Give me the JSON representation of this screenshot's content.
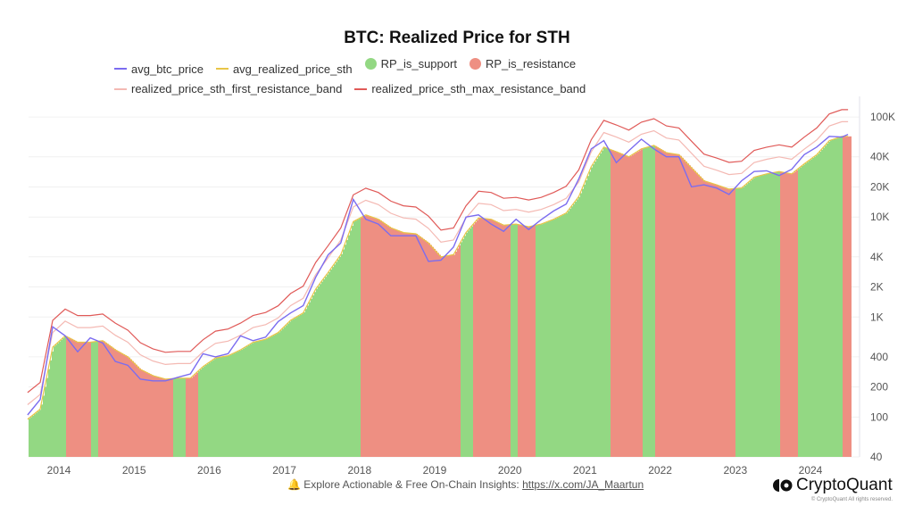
{
  "chart_data": {
    "type": "line",
    "title": "BTC: Realized Price for STH",
    "legend": [
      {
        "name": "avg_btc_price",
        "color": "#7b6cf0",
        "kind": "line"
      },
      {
        "name": "avg_realized_price_sth",
        "color": "#e8c547",
        "kind": "line"
      },
      {
        "name": "RP_is_support",
        "color": "#93d883",
        "kind": "dot"
      },
      {
        "name": "RP_is_resistance",
        "color": "#ee8f82",
        "kind": "dot"
      },
      {
        "name": "realized_price_sth_first_resistance_band",
        "color": "#f4b9b3",
        "kind": "line"
      },
      {
        "name": "realized_price_sth_max_resistance_band",
        "color": "#e05a58",
        "kind": "line"
      }
    ],
    "legend_position": "top",
    "y_scale": "log",
    "ylim": [
      40,
      150000
    ],
    "y_ticks": [
      {
        "v": 100000,
        "label": "100K"
      },
      {
        "v": 40000,
        "label": "40K"
      },
      {
        "v": 20000,
        "label": "20K"
      },
      {
        "v": 10000,
        "label": "10K"
      },
      {
        "v": 4000,
        "label": "4K"
      },
      {
        "v": 2000,
        "label": "2K"
      },
      {
        "v": 1000,
        "label": "1K"
      },
      {
        "v": 400,
        "label": "400"
      },
      {
        "v": 200,
        "label": "200"
      },
      {
        "v": 100,
        "label": "100"
      },
      {
        "v": 40,
        "label": "40"
      }
    ],
    "x_ticks": [
      "2014",
      "2015",
      "2016",
      "2017",
      "2018",
      "2019",
      "2020",
      "2021",
      "2022",
      "2023",
      "2024"
    ],
    "grid": true,
    "x": [
      "2013-08",
      "2013-10",
      "2013-12",
      "2014-02",
      "2014-04",
      "2014-06",
      "2014-08",
      "2014-10",
      "2014-12",
      "2015-02",
      "2015-04",
      "2015-06",
      "2015-08",
      "2015-10",
      "2015-12",
      "2016-02",
      "2016-04",
      "2016-06",
      "2016-08",
      "2016-10",
      "2016-12",
      "2017-02",
      "2017-04",
      "2017-06",
      "2017-08",
      "2017-10",
      "2017-12",
      "2018-02",
      "2018-04",
      "2018-06",
      "2018-08",
      "2018-10",
      "2018-12",
      "2019-02",
      "2019-04",
      "2019-06",
      "2019-08",
      "2019-10",
      "2019-12",
      "2020-02",
      "2020-04",
      "2020-06",
      "2020-08",
      "2020-10",
      "2020-12",
      "2021-02",
      "2021-04",
      "2021-06",
      "2021-08",
      "2021-10",
      "2021-12",
      "2022-02",
      "2022-04",
      "2022-06",
      "2022-08",
      "2022-10",
      "2022-12",
      "2023-02",
      "2023-04",
      "2023-06",
      "2023-08",
      "2023-10",
      "2023-12",
      "2024-02",
      "2024-04",
      "2024-06",
      "2024-07"
    ],
    "series": [
      {
        "name": "avg_btc_price",
        "values": [
          105,
          150,
          800,
          650,
          450,
          620,
          550,
          360,
          330,
          240,
          230,
          230,
          250,
          270,
          430,
          400,
          430,
          650,
          580,
          630,
          900,
          1100,
          1300,
          2500,
          4200,
          5500,
          15000,
          9500,
          8500,
          6500,
          6500,
          6500,
          3600,
          3700,
          5000,
          10000,
          10500,
          8500,
          7200,
          9500,
          7500,
          9400,
          11500,
          13500,
          24000,
          48000,
          58000,
          35000,
          46000,
          60000,
          48000,
          40000,
          40000,
          20000,
          21000,
          19500,
          16800,
          23000,
          28500,
          29000,
          26000,
          30000,
          42000,
          50000,
          64000,
          63000,
          67000
        ]
      },
      {
        "name": "avg_realized_price_sth",
        "values": [
          95,
          120,
          500,
          650,
          560,
          560,
          580,
          470,
          400,
          300,
          260,
          240,
          245,
          245,
          320,
          390,
          410,
          470,
          560,
          600,
          700,
          930,
          1100,
          1900,
          2800,
          4200,
          9000,
          10500,
          9500,
          7800,
          7000,
          6800,
          5500,
          4000,
          4200,
          7000,
          9800,
          9500,
          8300,
          8500,
          8000,
          8500,
          9500,
          11000,
          16000,
          32000,
          50000,
          45000,
          40000,
          48000,
          52000,
          44000,
          42000,
          31000,
          23000,
          21000,
          19000,
          19500,
          25000,
          27000,
          28500,
          27000,
          34000,
          42000,
          58000,
          64000,
          64000
        ]
      },
      {
        "name": "realized_price_sth_first_resistance_band",
        "values": [
          133,
          168,
          700,
          910,
          784,
          784,
          812,
          658,
          560,
          420,
          364,
          336,
          343,
          343,
          448,
          546,
          574,
          658,
          784,
          840,
          980,
          1300,
          1540,
          2660,
          3920,
          5880,
          12600,
          14700,
          13300,
          10900,
          9800,
          9520,
          7700,
          5600,
          5880,
          9800,
          13700,
          13300,
          11600,
          11900,
          11200,
          11900,
          13300,
          15400,
          22400,
          44800,
          70000,
          63000,
          56000,
          67200,
          72800,
          61600,
          58800,
          43400,
          32200,
          29400,
          26600,
          27300,
          35000,
          37800,
          39900,
          37800,
          47600,
          58800,
          81200,
          89600,
          89600
        ]
      },
      {
        "name": "realized_price_sth_max_resistance_band",
        "values": [
          176,
          222,
          925,
          1200,
          1036,
          1036,
          1073,
          870,
          740,
          555,
          481,
          444,
          453,
          453,
          592,
          722,
          759,
          870,
          1036,
          1110,
          1295,
          1720,
          2035,
          3515,
          5180,
          7770,
          16650,
          19400,
          17600,
          14400,
          12950,
          12580,
          10200,
          7400,
          7770,
          12950,
          18100,
          17600,
          15400,
          15700,
          14800,
          15700,
          17600,
          20350,
          29600,
          59200,
          92500,
          83250,
          74000,
          88800,
          96200,
          81400,
          77700,
          57350,
          42550,
          38850,
          35150,
          36100,
          46250,
          49950,
          52700,
          49950,
          62900,
          77700,
          107300,
          118400,
          118400
        ]
      }
    ],
    "rp_is_resistance_periods": [
      [
        "2014-02",
        "2014-03"
      ],
      [
        "2014-04",
        "2014-05"
      ],
      [
        "2014-07",
        "2015-06"
      ],
      [
        "2015-09",
        "2015-10"
      ],
      [
        "2018-01",
        "2019-04"
      ],
      [
        "2019-07",
        "2019-12"
      ],
      [
        "2020-02",
        "2020-04"
      ],
      [
        "2021-05",
        "2021-07"
      ],
      [
        "2021-08",
        "2021-09"
      ],
      [
        "2021-12",
        "2022-12"
      ],
      [
        "2023-08",
        "2023-10"
      ],
      [
        "2024-06",
        "2024-07"
      ]
    ]
  },
  "footer": {
    "bell_icon": "bell-icon",
    "text": "Explore Actionable & Free On-Chain Insights: ",
    "link": "https://x.com/JA_Maartun"
  },
  "brand": {
    "name": "CryptoQuant",
    "copyright": "© CryptoQuant All rights reserved."
  }
}
